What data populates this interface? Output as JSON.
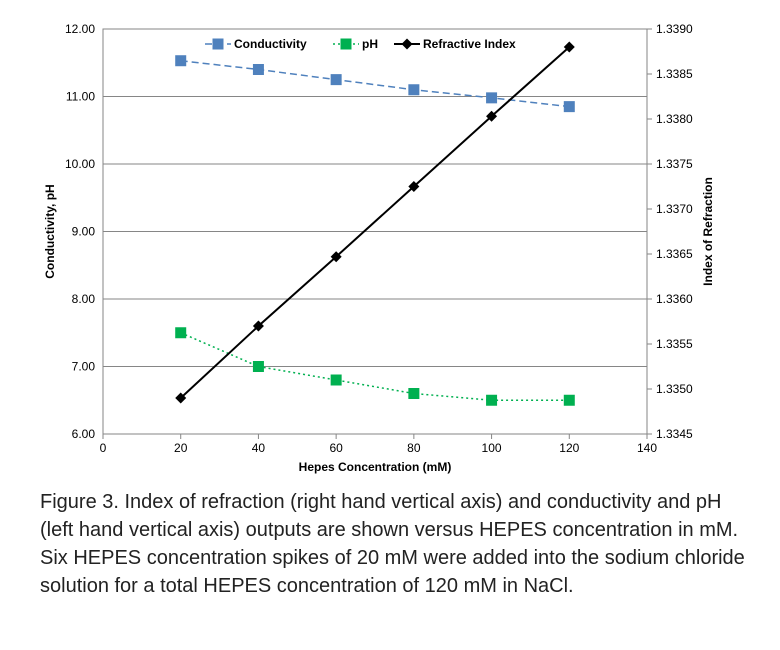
{
  "chart_data": {
    "type": "line",
    "xlabel": "Hepes Concentration (mM)",
    "ylabel": "Conductivity, pH",
    "y2label": "Index of Refraction",
    "xlim": [
      0,
      140
    ],
    "ylim": [
      6.0,
      12.0
    ],
    "y2lim": [
      1.3345,
      1.339
    ],
    "x_ticks": [
      "0",
      "20",
      "40",
      "60",
      "80",
      "100",
      "120",
      "140"
    ],
    "y_ticks": [
      "6.00",
      "7.00",
      "8.00",
      "9.00",
      "10.00",
      "11.00",
      "12.00"
    ],
    "y2_ticks": [
      "1.3345",
      "1.3350",
      "1.3355",
      "1.3360",
      "1.3365",
      "1.3370",
      "1.3375",
      "1.3380",
      "1.3385",
      "1.3390"
    ],
    "grid": "horizontal",
    "legend": "top",
    "series": [
      {
        "name": "Conductivity",
        "axis": "left",
        "color": "#4f81bd",
        "line": "dashed",
        "marker": "square",
        "x": [
          20,
          40,
          60,
          80,
          100,
          120
        ],
        "values": [
          11.53,
          11.4,
          11.25,
          11.1,
          10.98,
          10.85
        ]
      },
      {
        "name": "pH",
        "axis": "left",
        "color": "#00b050",
        "line": "dotted",
        "marker": "square",
        "x": [
          20,
          40,
          60,
          80,
          100,
          120
        ],
        "values": [
          7.5,
          7.0,
          6.8,
          6.6,
          6.5,
          6.5
        ]
      },
      {
        "name": "Refractive Index",
        "axis": "right",
        "color": "#000000",
        "line": "solid",
        "marker": "diamond",
        "x": [
          20,
          40,
          60,
          80,
          100,
          120
        ],
        "values": [
          1.3349,
          1.3357,
          1.33647,
          1.33725,
          1.33803,
          1.3388
        ]
      }
    ]
  },
  "caption": "Figure 3. Index of refraction (right hand vertical axis) and conductivity and pH (left hand vertical axis) outputs are shown versus HEPES concentration in mM. Six HEPES concentration spikes of 20 mM were added into the sodium chloride solution for a total HEPES concentration of 120 mM in NaCl."
}
